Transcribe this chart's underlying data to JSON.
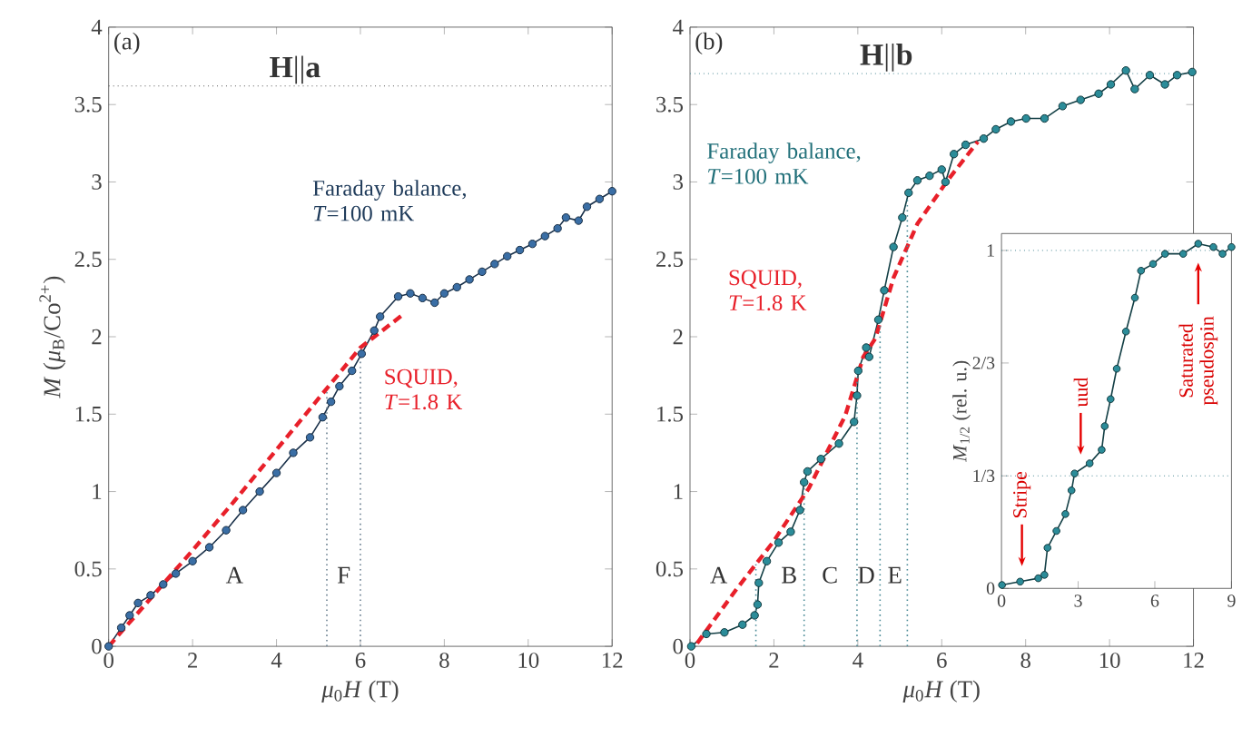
{
  "chart_data": [
    {
      "type": "line",
      "xlabel": "*μ*$_{0}$*H* (T)",
      "ylabel": "*M* (*μ*$_{B}$/Co$^{2+}$)",
      "xlim": [
        0,
        12
      ],
      "ylim": [
        0,
        4
      ],
      "xticks": [
        0,
        2,
        4,
        6,
        8,
        10,
        12
      ],
      "yticks": [
        0,
        0.5,
        1,
        1.5,
        2,
        2.5,
        3,
        3.5,
        4
      ],
      "marker": "circle",
      "annotations": [
        "(a)",
        "**H**||**a**",
        "A",
        "F"
      ],
      "ref_lines": [
        {
          "axis": "y",
          "value": 3.62,
          "color": "#555555",
          "line_style": "dotted"
        },
        {
          "axis": "x",
          "value": 5.2,
          "color": "#6a7f90",
          "line_style": "dotted"
        },
        {
          "axis": "x",
          "value": 6.0,
          "color": "#6a7f90",
          "line_style": "dotted"
        }
      ],
      "series": [
        {
          "name": "Faraday balance, *T*=100 mK",
          "color": "#3a6ea5",
          "x": [
            0,
            0.3,
            0.5,
            0.7,
            1.0,
            1.3,
            1.6,
            2.0,
            2.4,
            2.8,
            3.2,
            3.6,
            4.0,
            4.4,
            4.8,
            5.1,
            5.3,
            5.5,
            5.8,
            6.03,
            6.33,
            6.47,
            6.9,
            7.19,
            7.48,
            7.77,
            8.0,
            8.3,
            8.6,
            8.9,
            9.2,
            9.5,
            9.8,
            10.1,
            10.4,
            10.7,
            10.9,
            11.2,
            11.4,
            11.7,
            12.0
          ],
          "values": [
            0,
            0.12,
            0.2,
            0.28,
            0.33,
            0.4,
            0.47,
            0.55,
            0.64,
            0.75,
            0.88,
            1.0,
            1.12,
            1.25,
            1.35,
            1.48,
            1.58,
            1.68,
            1.78,
            1.89,
            2.04,
            2.13,
            2.26,
            2.28,
            2.25,
            2.22,
            2.28,
            2.32,
            2.37,
            2.42,
            2.47,
            2.52,
            2.56,
            2.6,
            2.65,
            2.7,
            2.77,
            2.75,
            2.84,
            2.89,
            2.94
          ]
        },
        {
          "name": "SQUID, *T*=1.8 K",
          "color": "#e8202a",
          "marker": "none",
          "line_style": "dashed",
          "x": [
            0,
            1,
            2,
            3,
            4,
            5,
            6,
            7
          ],
          "values": [
            0,
            0.31,
            0.62,
            0.94,
            1.27,
            1.6,
            1.93,
            2.14
          ]
        }
      ]
    },
    {
      "type": "line",
      "xlabel": "*μ*$_{0}$*H* (T)",
      "xlim": [
        0,
        12
      ],
      "ylim": [
        0,
        4
      ],
      "xticks": [
        0,
        2,
        4,
        6,
        8,
        10,
        12
      ],
      "yticks": [
        0,
        0.5,
        1,
        1.5,
        2,
        2.5,
        3,
        3.5,
        4
      ],
      "marker": "circle",
      "annotations": [
        "(b)",
        "**H**||**b**",
        "A",
        "B",
        "C",
        "D",
        "E"
      ],
      "ref_lines": [
        {
          "axis": "y",
          "value": 3.7,
          "color": "#4a8a96",
          "line_style": "dotted"
        },
        {
          "axis": "x",
          "value": 1.57,
          "color": "#4a8a96",
          "line_style": "dotted"
        },
        {
          "axis": "x",
          "value": 2.72,
          "color": "#4a8a96",
          "line_style": "dotted"
        },
        {
          "axis": "x",
          "value": 3.98,
          "color": "#4a8a96",
          "line_style": "dotted"
        },
        {
          "axis": "x",
          "value": 4.53,
          "color": "#4a8a96",
          "line_style": "dotted"
        },
        {
          "axis": "x",
          "value": 5.18,
          "color": "#4a8a96",
          "line_style": "dotted"
        }
      ],
      "series": [
        {
          "name": "Faraday balance, *T*=100 mK",
          "color": "#2b8c99",
          "x": [
            0.03,
            0.39,
            0.82,
            1.25,
            1.54,
            1.61,
            1.64,
            1.83,
            2.11,
            2.4,
            2.62,
            2.72,
            2.8,
            3.12,
            3.55,
            3.91,
            3.98,
            4.01,
            4.2,
            4.27,
            4.49,
            4.63,
            4.85,
            5.06,
            5.21,
            5.42,
            5.71,
            6.0,
            6.09,
            6.29,
            6.57,
            7.0,
            7.29,
            7.65,
            8.01,
            8.45,
            8.88,
            9.31,
            9.74,
            10.03,
            10.39,
            10.6,
            10.96,
            11.32,
            11.61,
            11.97
          ],
          "values": [
            0.0,
            0.08,
            0.09,
            0.14,
            0.2,
            0.27,
            0.41,
            0.55,
            0.67,
            0.74,
            0.88,
            1.06,
            1.13,
            1.21,
            1.31,
            1.45,
            1.62,
            1.78,
            1.93,
            1.87,
            2.11,
            2.3,
            2.58,
            2.77,
            2.93,
            3.01,
            3.04,
            3.08,
            3.0,
            3.18,
            3.24,
            3.28,
            3.34,
            3.39,
            3.41,
            3.41,
            3.49,
            3.53,
            3.57,
            3.63,
            3.72,
            3.6,
            3.69,
            3.63,
            3.69,
            3.71
          ]
        },
        {
          "name": "SQUID, *T*=1.8 K",
          "color": "#e8202a",
          "marker": "none",
          "line_style": "dashed",
          "x": [
            0.17,
            1.11,
            1.97,
            2.83,
            3.7,
            4.13,
            4.42,
            4.85,
            5.42,
            6.14,
            6.86
          ],
          "values": [
            0.02,
            0.37,
            0.67,
            1.02,
            1.49,
            1.87,
            1.99,
            2.38,
            2.73,
            3.01,
            3.26
          ]
        }
      ]
    },
    {
      "type": "line",
      "ylabel": "*M*$_{1/2}$ (rel. u.)",
      "xlim": [
        0,
        9
      ],
      "ylim": [
        0,
        1.05
      ],
      "xticks": [
        0,
        3,
        6,
        9
      ],
      "yticks": [
        0,
        {
          "value": 0.333,
          "label": "1/3"
        },
        {
          "value": 0.667,
          "label": "2/3"
        },
        1
      ],
      "marker": "circle",
      "annotations": [
        {
          "text": "Stripe",
          "x": 0.8,
          "y": 0.05
        },
        {
          "text": "uud",
          "x": 3.1,
          "y": 0.38
        },
        {
          "text": "Saturated pseudospin",
          "x": 7.7,
          "y": 0.98
        }
      ],
      "ref_lines": [
        {
          "axis": "y",
          "value": 1,
          "color": "#4a8a96",
          "line_style": "dotted"
        },
        {
          "axis": "y",
          "value": 0.333,
          "color": "#4a8a96",
          "line_style": "dotted"
        }
      ],
      "series": [
        {
          "color": "#2b8c99",
          "x": [
            0.02,
            0.73,
            1.44,
            1.68,
            1.8,
            2.15,
            2.5,
            2.74,
            2.86,
            3.45,
            3.92,
            4.04,
            4.27,
            4.51,
            4.87,
            5.22,
            5.46,
            5.93,
            6.4,
            7.11,
            7.7,
            8.29,
            8.65,
            9.0
          ],
          "values": [
            0.01,
            0.02,
            0.03,
            0.04,
            0.12,
            0.17,
            0.22,
            0.29,
            0.34,
            0.37,
            0.41,
            0.48,
            0.56,
            0.65,
            0.76,
            0.86,
            0.94,
            0.96,
            0.99,
            0.99,
            1.02,
            1.01,
            0.99,
            1.01
          ]
        }
      ]
    }
  ]
}
